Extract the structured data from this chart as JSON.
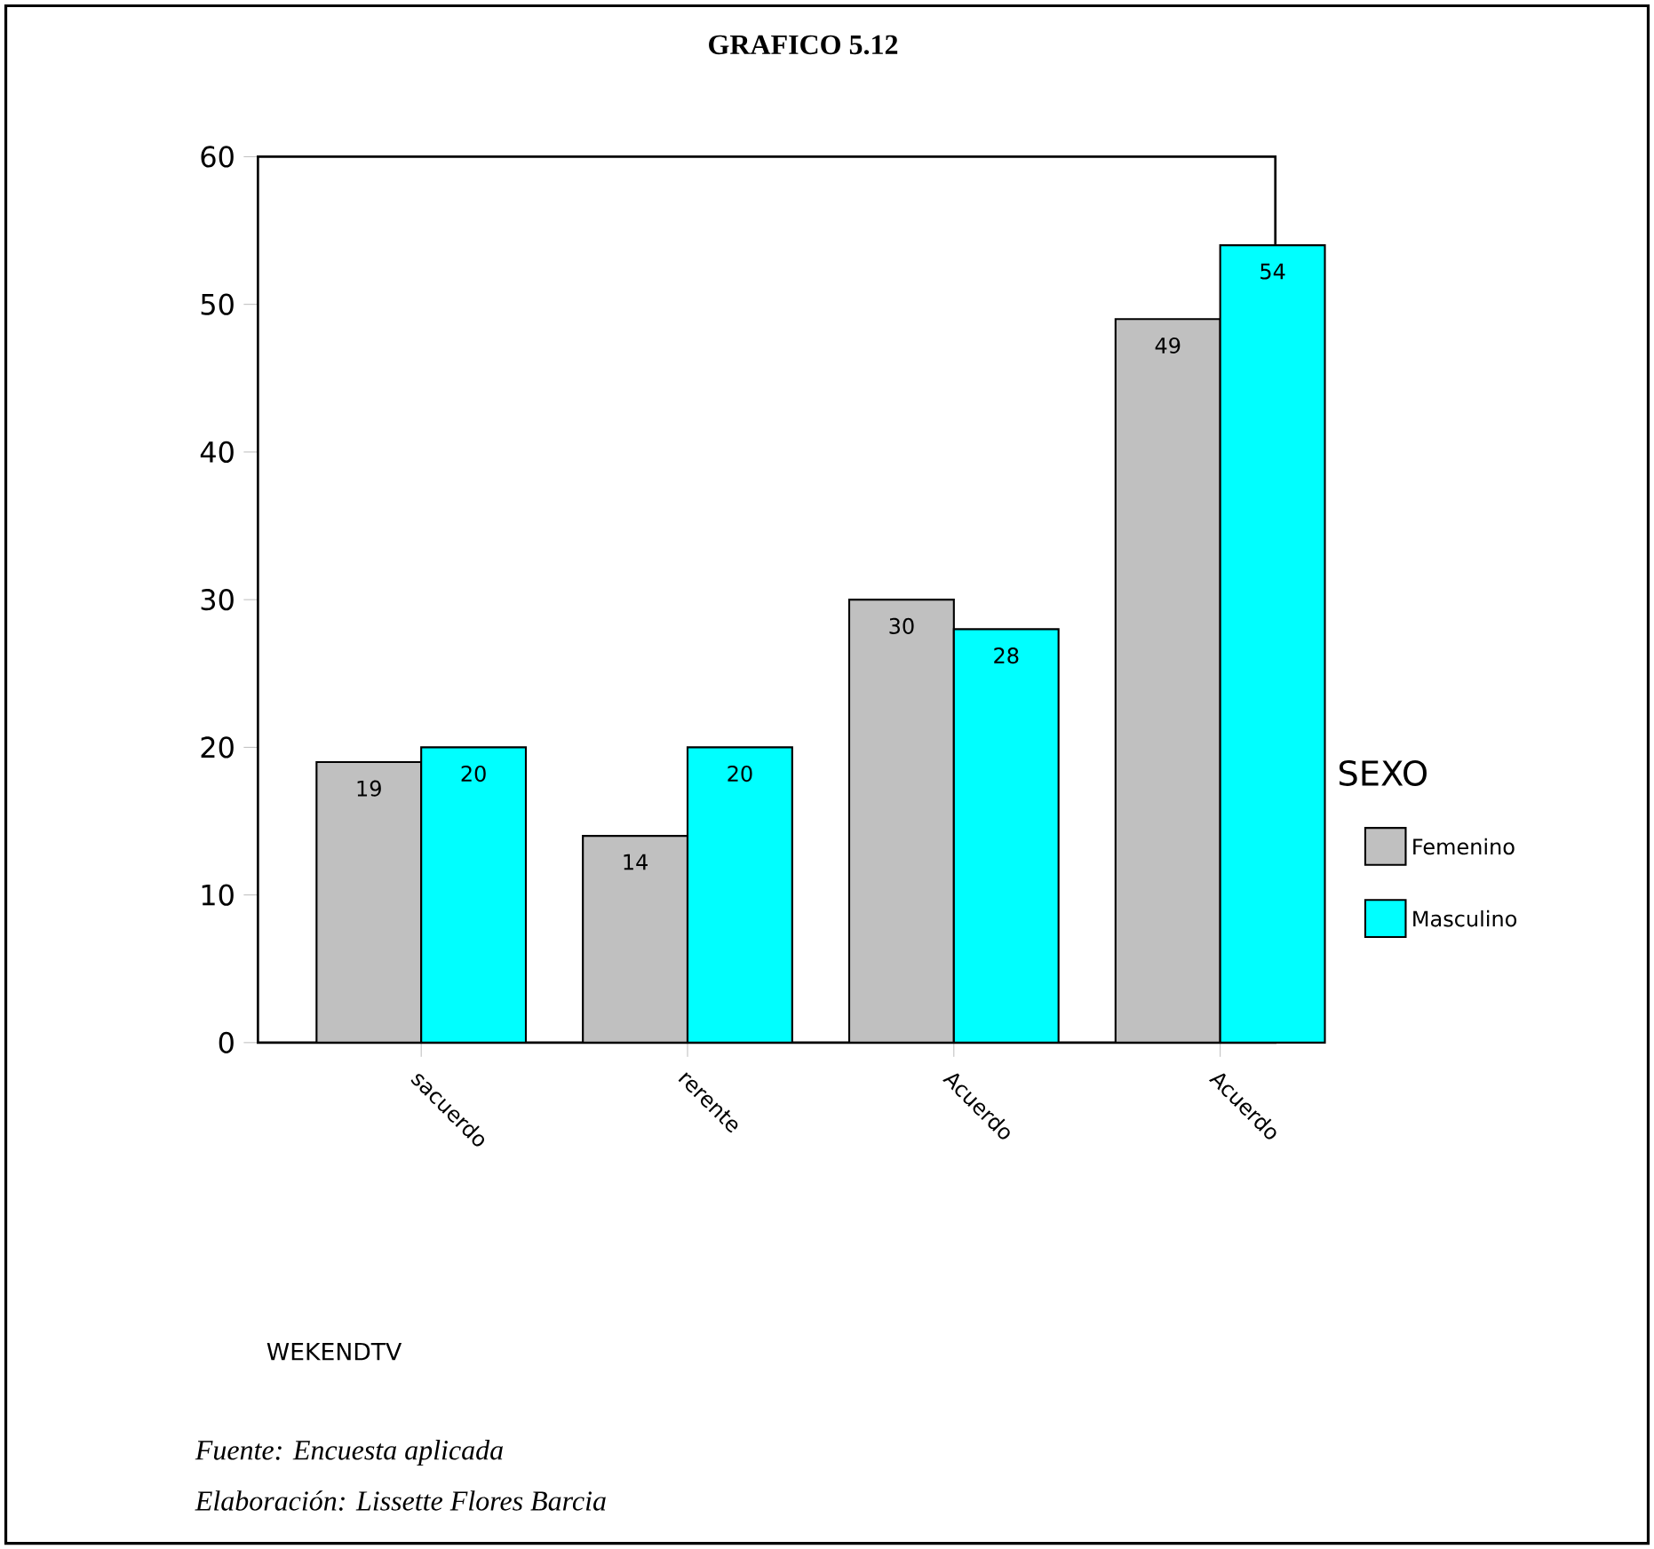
{
  "chart_data": {
    "type": "bar",
    "title": "GRAFICO 5.12",
    "legend_title": "SEXO",
    "categories": [
      "sacuerdo",
      "rerente",
      "Acuerdo",
      "Acuerdo"
    ],
    "series": [
      {
        "name": "Femenino",
        "color": "#c0c0c0",
        "values": [
          19,
          14,
          30,
          49
        ]
      },
      {
        "name": "Masculino",
        "color": "#00ffff",
        "values": [
          20,
          20,
          28,
          54
        ]
      }
    ],
    "ylim": [
      0,
      60
    ],
    "yticks": [
      0,
      10,
      20,
      30,
      40,
      50,
      60
    ],
    "grid": false,
    "legend": "right",
    "data_labels": true,
    "annotations": [
      "WEKENDTV",
      "Fuente:  Encuesta aplicada",
      "Elaboración:  Lissette Flores Barcia"
    ]
  }
}
